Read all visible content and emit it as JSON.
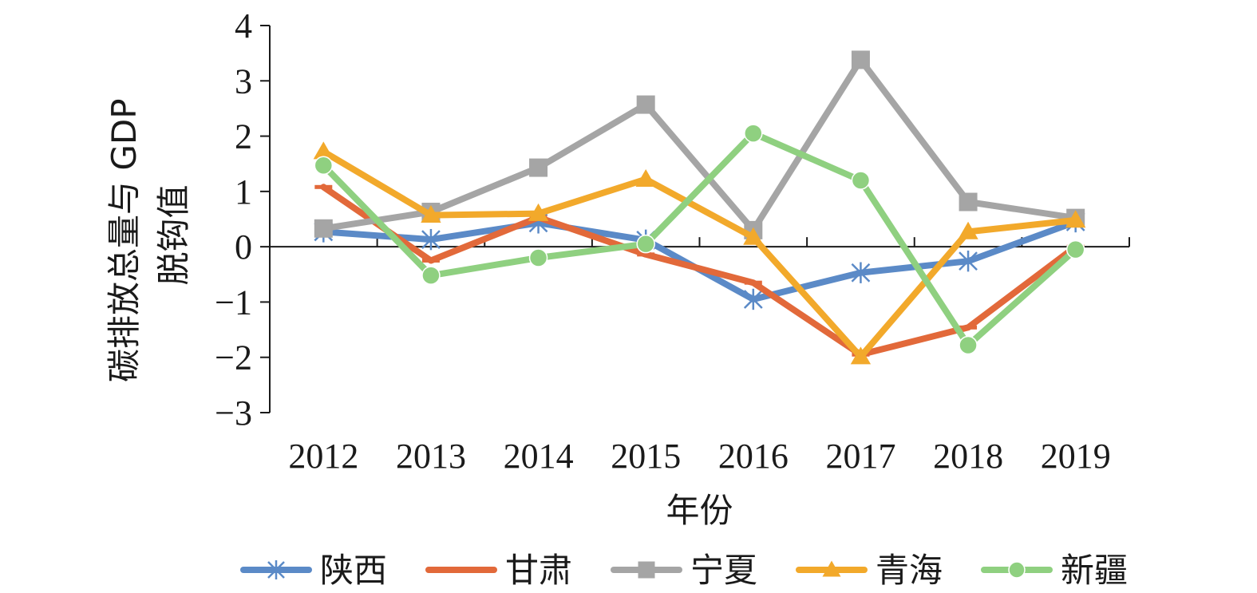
{
  "chart_data": {
    "type": "line",
    "categories": [
      "2012",
      "2013",
      "2014",
      "2015",
      "2016",
      "2017",
      "2018",
      "2019"
    ],
    "ylabel_lines": [
      "碳排放总量与 GDP",
      "脱钩值"
    ],
    "xlabel": "年份",
    "ylim": [
      -3,
      4
    ],
    "yticks": [
      4,
      3,
      2,
      1,
      0,
      -1,
      -2,
      -3
    ],
    "ytick_labels": [
      "4",
      "3",
      "2",
      "1",
      "0",
      "−1",
      "−2",
      "−3"
    ],
    "grid": false,
    "legend_position": "bottom",
    "series": [
      {
        "name": "陕西",
        "color": "#5b8ac7",
        "marker": "asterisk",
        "values": [
          0.27,
          0.13,
          0.43,
          0.12,
          -0.95,
          -0.47,
          -0.26,
          0.45
        ]
      },
      {
        "name": "甘肃",
        "color": "#e2693a",
        "marker": "dash",
        "values": [
          1.08,
          -0.25,
          0.53,
          -0.14,
          -0.65,
          -1.95,
          -1.46,
          0.0
        ]
      },
      {
        "name": "宁夏",
        "color": "#a5a5a5",
        "marker": "square",
        "values": [
          0.33,
          0.63,
          1.43,
          2.57,
          0.3,
          3.38,
          0.81,
          0.52
        ]
      },
      {
        "name": "青海",
        "color": "#f2a92b",
        "marker": "triangle",
        "values": [
          1.72,
          0.57,
          0.6,
          1.22,
          0.17,
          -1.99,
          0.27,
          0.48
        ]
      },
      {
        "name": "新疆",
        "color": "#8fd080",
        "marker": "circle",
        "values": [
          1.47,
          -0.52,
          -0.2,
          0.05,
          2.05,
          1.2,
          -1.78,
          -0.05
        ]
      }
    ]
  }
}
